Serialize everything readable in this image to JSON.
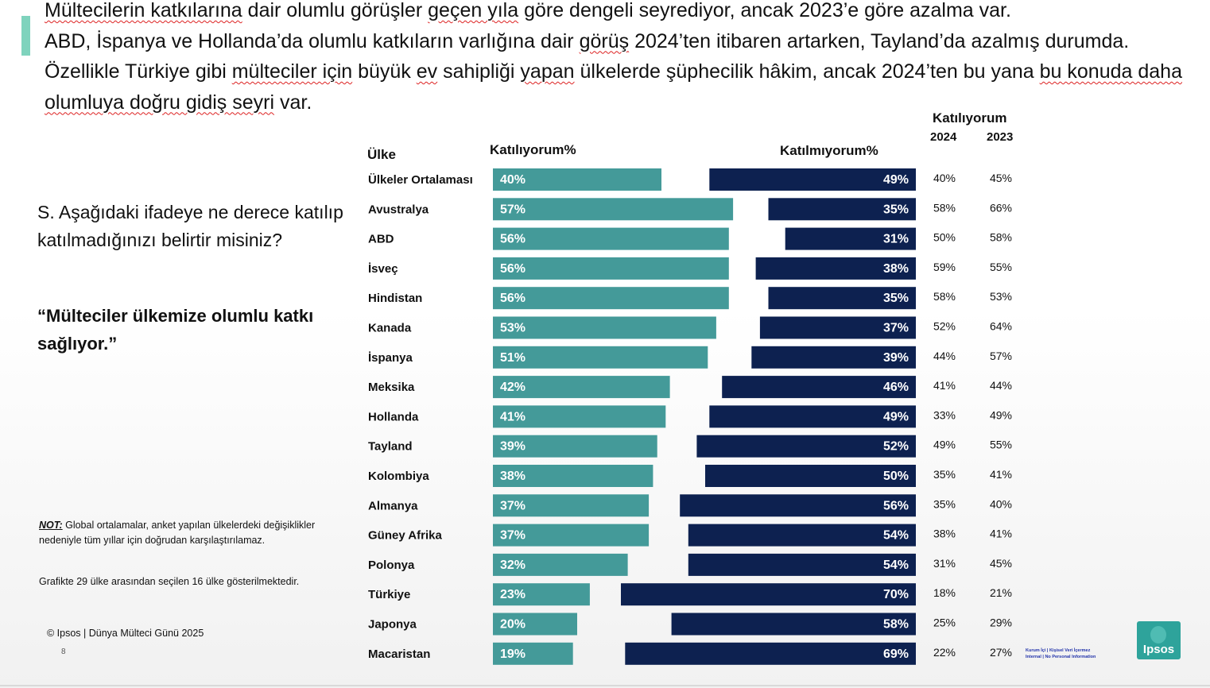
{
  "headline": {
    "line1_parts": [
      {
        "t": "Mültecilerin katkılarına",
        "sq": true
      },
      {
        "t": " dair olumlu görüşler ",
        "sq": false
      },
      {
        "t": "geçen yıla",
        "sq": true
      },
      {
        "t": " göre dengeli seyrediyor, ancak 2023’e göre azalma var.",
        "sq": false
      }
    ],
    "line2_parts": [
      {
        "t": "ABD, İspanya ve Hollanda’da olumlu katkıların varlığına dair ",
        "sq": false
      },
      {
        "t": "görüş",
        "sq": true
      },
      {
        "t": " 2024’ten itibaren artarken, Tayland’da azalmış durumda. Özellikle Türkiye gibi ",
        "sq": false
      },
      {
        "t": "mülteciler için",
        "sq": true
      },
      {
        "t": " büyük ",
        "sq": false
      },
      {
        "t": "ev",
        "sq": true
      },
      {
        "t": " sahipliği ",
        "sq": false
      },
      {
        "t": "yapan",
        "sq": true
      },
      {
        "t": " ülkelerde şüphecilik hâkim, ancak 2024’ten bu yana ",
        "sq": false
      },
      {
        "t": "bu konuda daha olumluya doğru gidiş seyri",
        "sq": true
      },
      {
        "t": " var.",
        "sq": false
      }
    ]
  },
  "question": "S. Aşağıdaki ifadeye ne derece katılıp katılmadığınızı belirtir misiniz?",
  "quote": "“Mülteciler ülkemize olumlu katkı sağlıyor.”",
  "note": {
    "label": "NOT:",
    "text": " Global ortalamalar, anket yapılan ülkelerdeki değişiklikler nedeniyle tüm yıllar için doğrudan karşılaştırılamaz."
  },
  "footnote": "Grafikte 29 ülke arasından seçilen 16 ülke gösterilmektedir.",
  "copyright": "© Ipsos | Dünya Mülteci Günü 2025",
  "page_number": "8",
  "logo_text": "Ipsos",
  "classification": [
    "Kurum İçi | Kişisel Veri İçermez",
    "Internal | No Personal Information"
  ],
  "colors": {
    "agree": "#449a99",
    "disagree": "#0d2150",
    "accent": "#7fd3bd",
    "logo": "#2ea39b"
  },
  "chart_data": {
    "type": "bar",
    "title": "Mülteciler ülkemize olumlu katkı sağlıyor.",
    "column_headers": {
      "country": "Ülke",
      "agree": "Katılıyorum%",
      "disagree": "Katılmıyorum%",
      "trend_title": "Katılıyorum",
      "year1": "2024",
      "year2": "2023"
    },
    "categories": [
      "Ülkeler Ortalaması",
      "Avustralya",
      "ABD",
      "İsveç",
      "Hindistan",
      "Kanada",
      "İspanya",
      "Meksika",
      "Hollanda",
      "Tayland",
      "Kolombiya",
      "Almanya",
      "Güney Afrika",
      "Polonya",
      "Türkiye",
      "Japonya",
      "Macaristan"
    ],
    "series": [
      {
        "name": "Katılıyorum%",
        "values": [
          40,
          57,
          56,
          56,
          56,
          53,
          51,
          42,
          41,
          39,
          38,
          37,
          37,
          32,
          23,
          20,
          19
        ]
      },
      {
        "name": "Katılmıyorum%",
        "values": [
          49,
          35,
          31,
          38,
          35,
          37,
          39,
          46,
          49,
          52,
          50,
          56,
          54,
          54,
          70,
          58,
          69
        ]
      }
    ],
    "agree_labels": [
      "40%",
      "57%",
      "56%",
      "56%",
      "56%",
      "53%",
      "51%",
      "42%",
      "41%",
      "39%",
      "38%",
      "37%",
      "37%",
      "32%",
      "23%",
      "20%",
      "19%"
    ],
    "disagree_labels": [
      "49%",
      "35%",
      "31%",
      "38%",
      "35%",
      "37%",
      "39%",
      "46%",
      "49%",
      "52%",
      "50%",
      "56%",
      "54%",
      "54%",
      "70%",
      "58%",
      "69%"
    ],
    "agree_2024": [
      "40%",
      "58%",
      "50%",
      "59%",
      "58%",
      "52%",
      "44%",
      "41%",
      "33%",
      "49%",
      "35%",
      "35%",
      "38%",
      "31%",
      "18%",
      "25%",
      "22%"
    ],
    "agree_2023": [
      "45%",
      "66%",
      "58%",
      "55%",
      "53%",
      "64%",
      "57%",
      "44%",
      "49%",
      "55%",
      "41%",
      "40%",
      "41%",
      "45%",
      "21%",
      "29%",
      "27%"
    ],
    "xlim": [
      0,
      100
    ]
  }
}
